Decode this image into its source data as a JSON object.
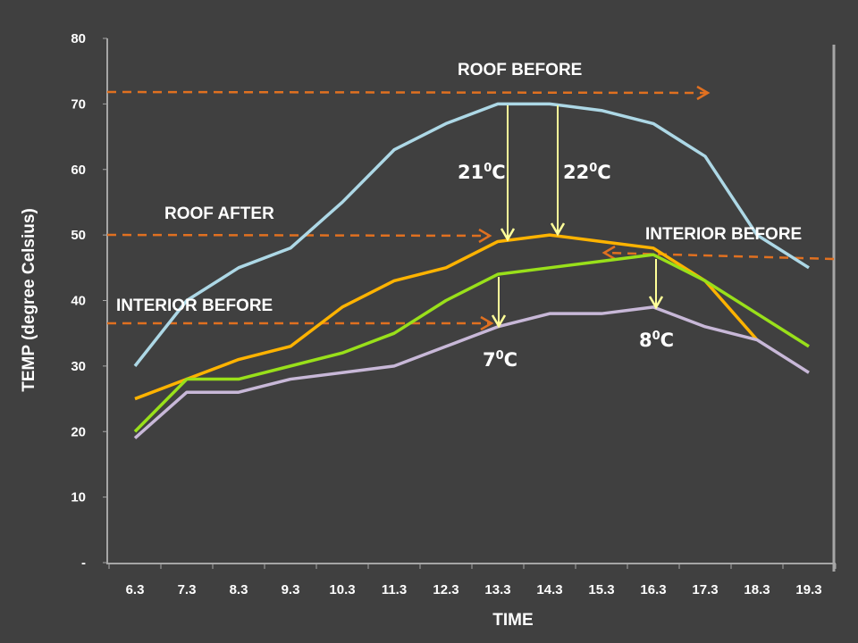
{
  "chart_data": {
    "type": "line",
    "title": "",
    "xlabel": "TIME",
    "ylabel": "TEMP (degree Celsius)",
    "categories": [
      "6.3",
      "7.3",
      "8.3",
      "9.3",
      "10.3",
      "11.3",
      "12.3",
      "13.3",
      "14.3",
      "15.3",
      "16.3",
      "17.3",
      "18.3",
      "19.3"
    ],
    "yticks": [
      "-",
      "10",
      "20",
      "30",
      "40",
      "50",
      "60",
      "70",
      "80"
    ],
    "ylim": [
      0,
      80
    ],
    "grid": false,
    "legend": "none",
    "series": [
      {
        "color": "#add8e6",
        "values": [
          30,
          40,
          45,
          48,
          55,
          63,
          67,
          70,
          70,
          69,
          67,
          62,
          50,
          45
        ]
      },
      {
        "color": "#ffb300",
        "values": [
          25,
          28,
          31,
          33,
          39,
          43,
          45,
          49,
          50,
          49,
          48,
          43,
          34,
          null
        ]
      },
      {
        "color": "#99e01a",
        "values": [
          20,
          28,
          28,
          30,
          32,
          35,
          40,
          44,
          45,
          46,
          47,
          43,
          38,
          33
        ]
      },
      {
        "color": "#c8b8d8",
        "values": [
          19,
          26,
          26,
          28,
          29,
          30,
          33,
          36,
          38,
          38,
          39,
          36,
          34,
          29
        ]
      }
    ],
    "annotations": {
      "labels": [
        "ROOF BEFORE",
        "ROOF AFTER",
        "INTERIOR BEFORE",
        "INTERIOR BEFORE"
      ],
      "deltas": [
        {
          "base": "21",
          "unit": "C",
          "sup": "0"
        },
        {
          "base": "22",
          "unit": "C",
          "sup": "0"
        },
        {
          "base": "7",
          "unit": "C",
          "sup": "0"
        },
        {
          "base": "8",
          "unit": "C",
          "sup": "0"
        }
      ]
    },
    "colors": {
      "background": "#404040",
      "dashed_reference": "#e07020",
      "arrows": "#ffff99",
      "axis": "#a6a6a6"
    }
  }
}
